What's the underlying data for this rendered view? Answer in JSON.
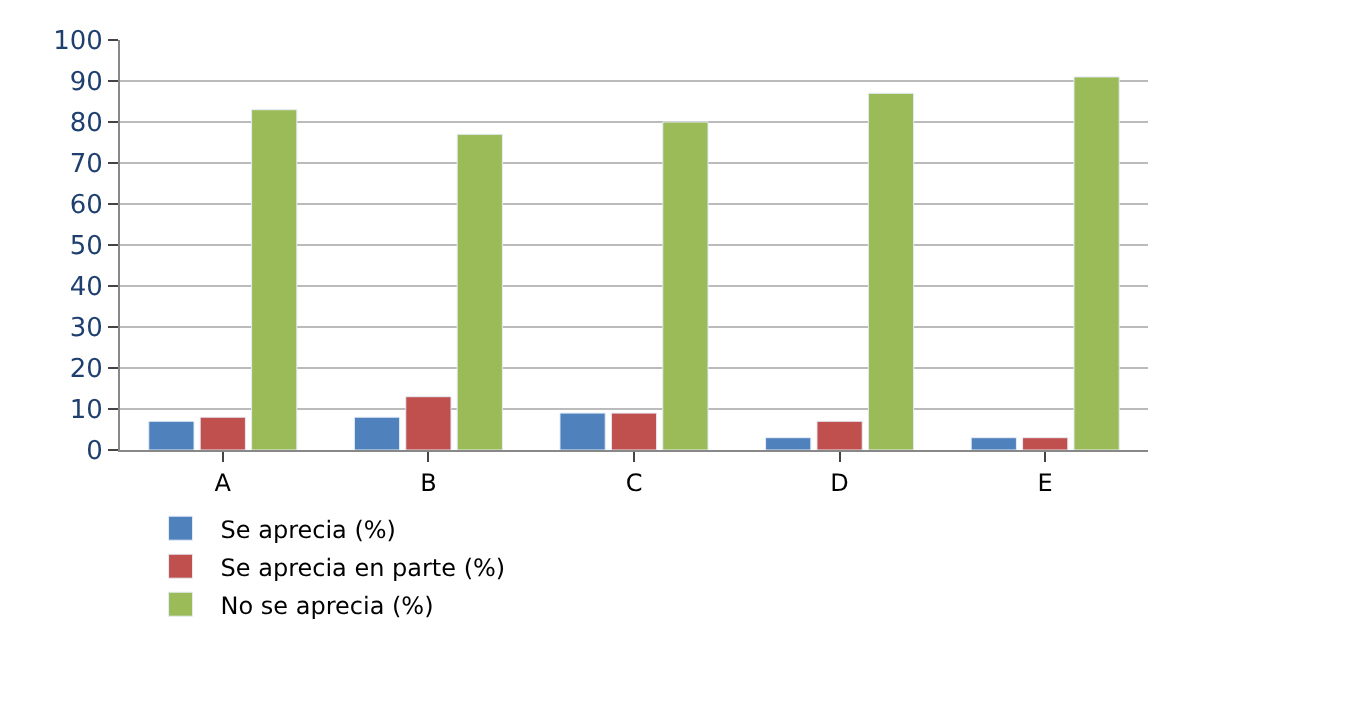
{
  "chart_data": {
    "type": "bar",
    "categories": [
      "A",
      "B",
      "C",
      "D",
      "E"
    ],
    "series": [
      {
        "name": "Se aprecia (%)",
        "color": "#4f81bd",
        "values": [
          7,
          8,
          9,
          3,
          3
        ]
      },
      {
        "name": "Se aprecia en parte (%)",
        "color": "#c0504d",
        "values": [
          8,
          13,
          9,
          7,
          3
        ]
      },
      {
        "name": "No se aprecia (%)",
        "color": "#9bbb59",
        "values": [
          83,
          77,
          80,
          87,
          91
        ]
      }
    ],
    "ylim": [
      0,
      100
    ],
    "yticks": [
      0,
      10,
      20,
      30,
      40,
      50,
      60,
      70,
      80,
      90,
      100
    ],
    "grid": "y",
    "legend": "bottom left"
  }
}
